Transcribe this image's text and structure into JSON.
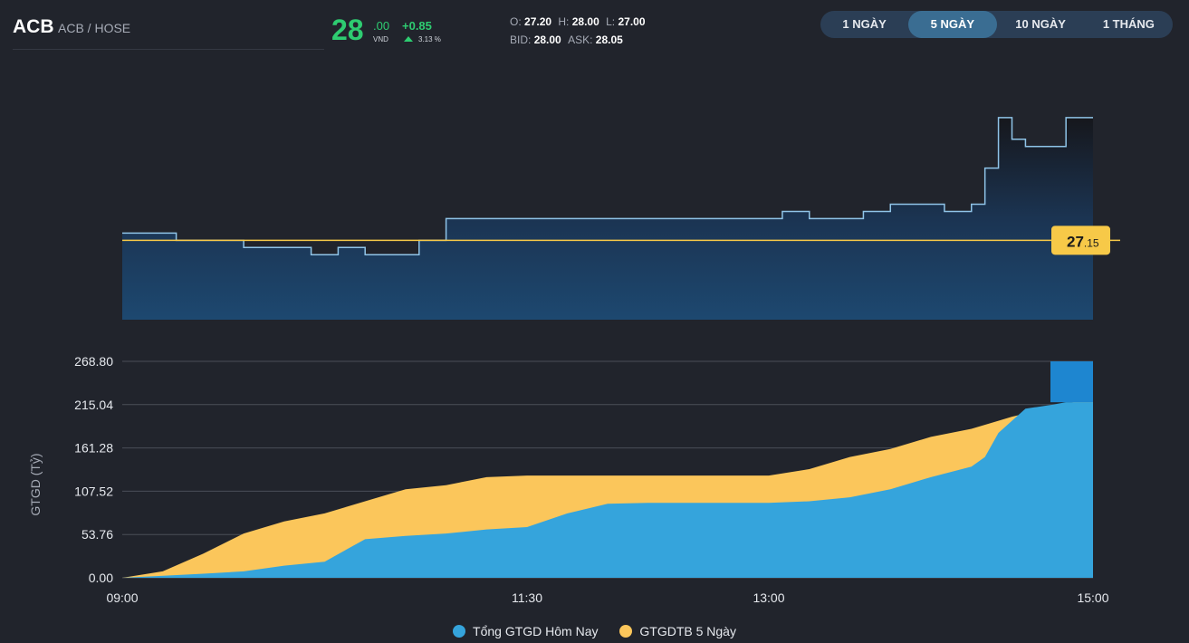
{
  "header": {
    "symbol": "ACB",
    "exchange": "ACB / HOSE",
    "price_int": "28",
    "price_dec": ".00",
    "currency": "VND",
    "change": "+0.85",
    "change_pct": "3.13 %",
    "open_label": "O:",
    "open": "27.20",
    "high_label": "H:",
    "high": "28.00",
    "low_label": "L:",
    "low": "27.00",
    "bid_label": "BID:",
    "bid": "28.00",
    "ask_label": "ASK:",
    "ask": "28.05",
    "up_color": "#2ecc71"
  },
  "tabs": [
    {
      "label": "1 NGÀY",
      "active": false
    },
    {
      "label": "5 NGÀY",
      "active": true
    },
    {
      "label": "10 NGÀY",
      "active": false
    },
    {
      "label": "1 THÁNG",
      "active": false
    }
  ],
  "chart_data": [
    {
      "type": "line",
      "reference_price": 27.15,
      "reference_label_int": "27",
      "reference_label_dec": ".15",
      "reference_color": "#f7c948",
      "line_color": "#8fc4e8",
      "ylim": [
        26.6,
        28.25
      ],
      "x": [
        "09:00",
        "09:15",
        "09:20",
        "09:30",
        "09:45",
        "10:00",
        "10:10",
        "10:20",
        "10:30",
        "10:45",
        "10:50",
        "11:00",
        "11:05",
        "11:15",
        "11:30",
        "11:45",
        "12:00",
        "12:15",
        "12:30",
        "12:45",
        "13:00",
        "13:05",
        "13:15",
        "13:25",
        "13:35",
        "13:45",
        "13:55",
        "14:05",
        "14:15",
        "14:20",
        "14:25",
        "14:30",
        "14:35",
        "14:45",
        "14:50",
        "15:00"
      ],
      "values": [
        27.2,
        27.2,
        27.15,
        27.15,
        27.1,
        27.1,
        27.05,
        27.1,
        27.05,
        27.05,
        27.15,
        27.3,
        27.3,
        27.3,
        27.3,
        27.3,
        27.3,
        27.3,
        27.3,
        27.3,
        27.3,
        27.35,
        27.3,
        27.3,
        27.35,
        27.4,
        27.4,
        27.35,
        27.4,
        27.65,
        28.0,
        27.85,
        27.8,
        27.8,
        28.0,
        28.0
      ]
    },
    {
      "type": "area",
      "ylabel": "GTGD (Tỷ)",
      "ylim": [
        0,
        268.8
      ],
      "yticks": [
        "268.80",
        "215.04",
        "161.28",
        "107.52",
        "53.76",
        "0.00"
      ],
      "ytick_values": [
        268.8,
        215.04,
        161.28,
        107.52,
        53.76,
        0
      ],
      "xticks": [
        "09:00",
        "11:30",
        "13:00",
        "15:00"
      ],
      "legend_position": "bottom",
      "series": [
        {
          "name": "Tổng GTGD Hôm Nay",
          "color": "#35a4dc",
          "x": [
            "09:00",
            "09:30",
            "09:45",
            "10:00",
            "10:15",
            "10:30",
            "10:45",
            "11:00",
            "11:15",
            "11:30",
            "11:45",
            "12:00",
            "12:15",
            "12:30",
            "12:45",
            "13:00",
            "13:15",
            "13:30",
            "13:45",
            "14:00",
            "14:15",
            "14:20",
            "14:25",
            "14:30",
            "14:35",
            "14:45",
            "14:50",
            "15:00"
          ],
          "values": [
            0,
            5,
            8,
            15,
            20,
            48,
            52,
            55,
            60,
            63,
            80,
            92,
            93,
            93,
            93,
            93,
            95,
            100,
            110,
            125,
            138,
            150,
            180,
            195,
            210,
            215,
            218,
            218
          ]
        },
        {
          "name": "GTGDTB 5 Ngày",
          "color": "#fbc65b",
          "x": [
            "09:00",
            "09:15",
            "09:30",
            "09:45",
            "10:00",
            "10:15",
            "10:30",
            "10:45",
            "11:00",
            "11:15",
            "11:30",
            "11:45",
            "12:00",
            "12:15",
            "12:30",
            "12:45",
            "13:00",
            "13:15",
            "13:30",
            "13:45",
            "14:00",
            "14:15",
            "14:25",
            "14:30",
            "14:45",
            "15:00"
          ],
          "values": [
            0,
            8,
            30,
            55,
            70,
            80,
            95,
            110,
            115,
            125,
            127,
            127,
            127,
            127,
            127,
            127,
            127,
            135,
            150,
            160,
            175,
            185,
            195,
            200,
            212,
            224
          ]
        }
      ]
    }
  ]
}
